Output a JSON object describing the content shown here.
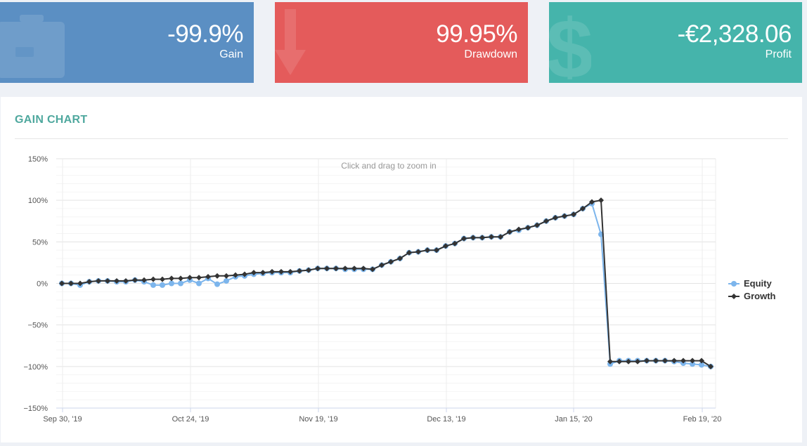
{
  "stats": {
    "gain": {
      "value": "-99.9%",
      "label": "Gain"
    },
    "drawdown": {
      "value": "99.95%",
      "label": "Drawdown"
    },
    "profit": {
      "value": "-€2,328.06",
      "label": "Profit"
    }
  },
  "panel": {
    "title": "GAIN CHART"
  },
  "chart_data": {
    "type": "line",
    "zoom_hint": "Click and drag to zoom in",
    "y_ticks": [
      "150%",
      "100%",
      "50%",
      "0%",
      "−50%",
      "−100%",
      "−150%"
    ],
    "ylim": [
      -150,
      150
    ],
    "x_ticks": [
      "Sep 30, '19",
      "Oct 24, '19",
      "Nov 19, '19",
      "Dec 13, '19",
      "Jan 15, '20",
      "Feb 19, '20"
    ],
    "legend_position": "right",
    "colors": {
      "equity": "#7cb5ec",
      "growth": "#333333"
    },
    "series": [
      {
        "name": "Equity",
        "values": [
          0,
          0,
          -2,
          2,
          3,
          3,
          2,
          2,
          4,
          2,
          -2,
          -2,
          0,
          0,
          4,
          0,
          6,
          -1,
          3,
          8,
          9,
          11,
          12,
          13,
          13,
          13,
          15,
          16,
          18,
          18,
          18,
          17,
          17,
          17,
          17,
          22,
          26,
          30,
          37,
          38,
          40,
          40,
          45,
          48,
          54,
          55,
          55,
          56,
          56,
          62,
          64,
          67,
          70,
          75,
          79,
          81,
          83,
          90,
          96,
          59,
          -97,
          -93,
          -93,
          -93,
          -93,
          -93,
          -93,
          -94,
          -96,
          -97,
          -98,
          -100
        ]
      },
      {
        "name": "Growth",
        "values": [
          0,
          0,
          0,
          2,
          3,
          3,
          3,
          3,
          4,
          4,
          5,
          5,
          6,
          6,
          7,
          7,
          8,
          9,
          9,
          10,
          11,
          13,
          13,
          14,
          14,
          14,
          15,
          16,
          18,
          18,
          18,
          18,
          18,
          18,
          17,
          22,
          26,
          30,
          37,
          38,
          40,
          40,
          45,
          48,
          54,
          55,
          55,
          56,
          56,
          62,
          65,
          67,
          70,
          75,
          79,
          81,
          83,
          90,
          98,
          100,
          -94,
          -94,
          -94,
          -94,
          -93,
          -93,
          -93,
          -93,
          -93,
          -93,
          -93,
          -100
        ]
      }
    ]
  }
}
